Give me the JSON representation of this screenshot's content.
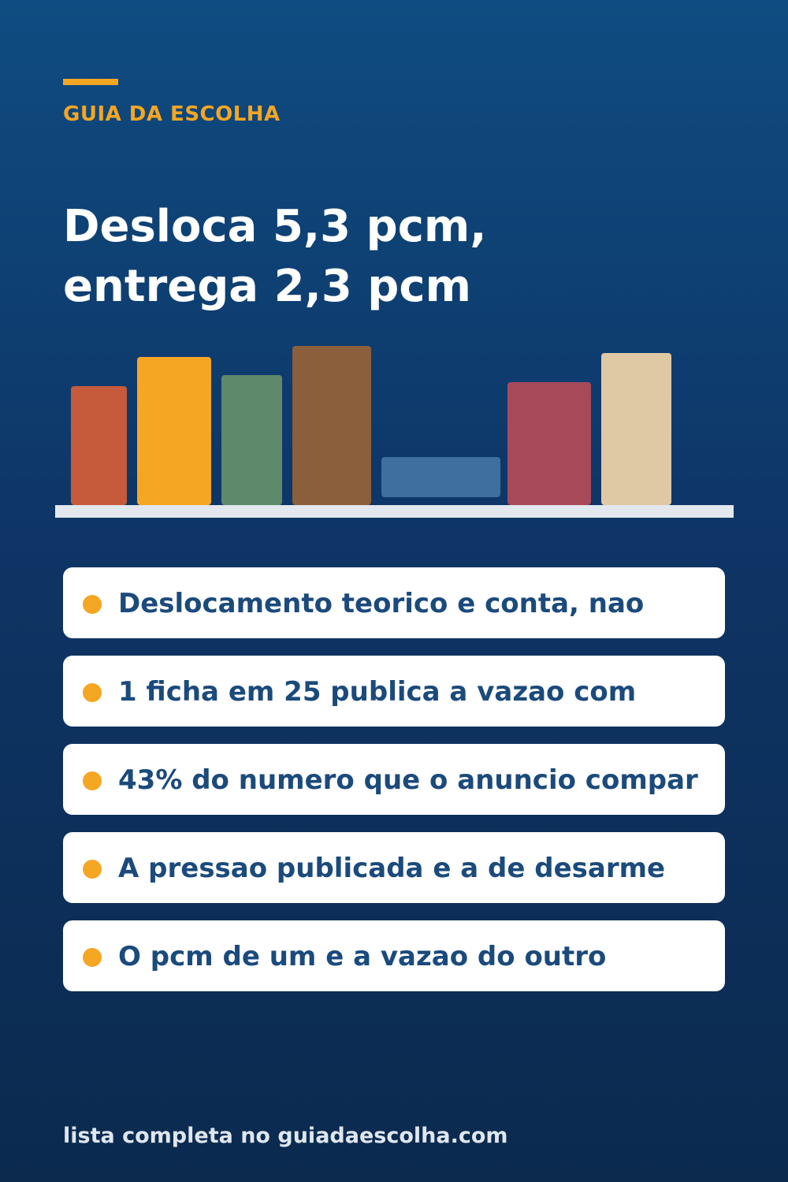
{
  "brand": {
    "name": "GUIA DA ESCOLHA",
    "accent_color": "#f5a623"
  },
  "headline": {
    "line1": "Desloca 5,3 pcm,",
    "line2": "entrega 2,3 pcm"
  },
  "books": [
    {
      "color": "#c55b3b"
    },
    {
      "color": "#f5a623"
    },
    {
      "color": "#5e8a6b"
    },
    {
      "color": "#8b5e3c"
    },
    {
      "color": "#3f6f9f"
    },
    {
      "color": "#a84a5a"
    },
    {
      "color": "#dfc9a4"
    }
  ],
  "points": [
    {
      "text": "Deslocamento teorico e conta, nao"
    },
    {
      "text": "1 ficha em 25 publica a vazao com"
    },
    {
      "text": "43% do numero que o anuncio compar"
    },
    {
      "text": "A pressao publicada e a de desarme"
    },
    {
      "text": "O pcm de um e a vazao do outro"
    }
  ],
  "footer": {
    "text": "lista completa no guiadaescolha.com"
  },
  "colors": {
    "background_top": "#0f4c81",
    "background_bottom": "#0b2a4e",
    "card_text": "#1b4a7c"
  }
}
